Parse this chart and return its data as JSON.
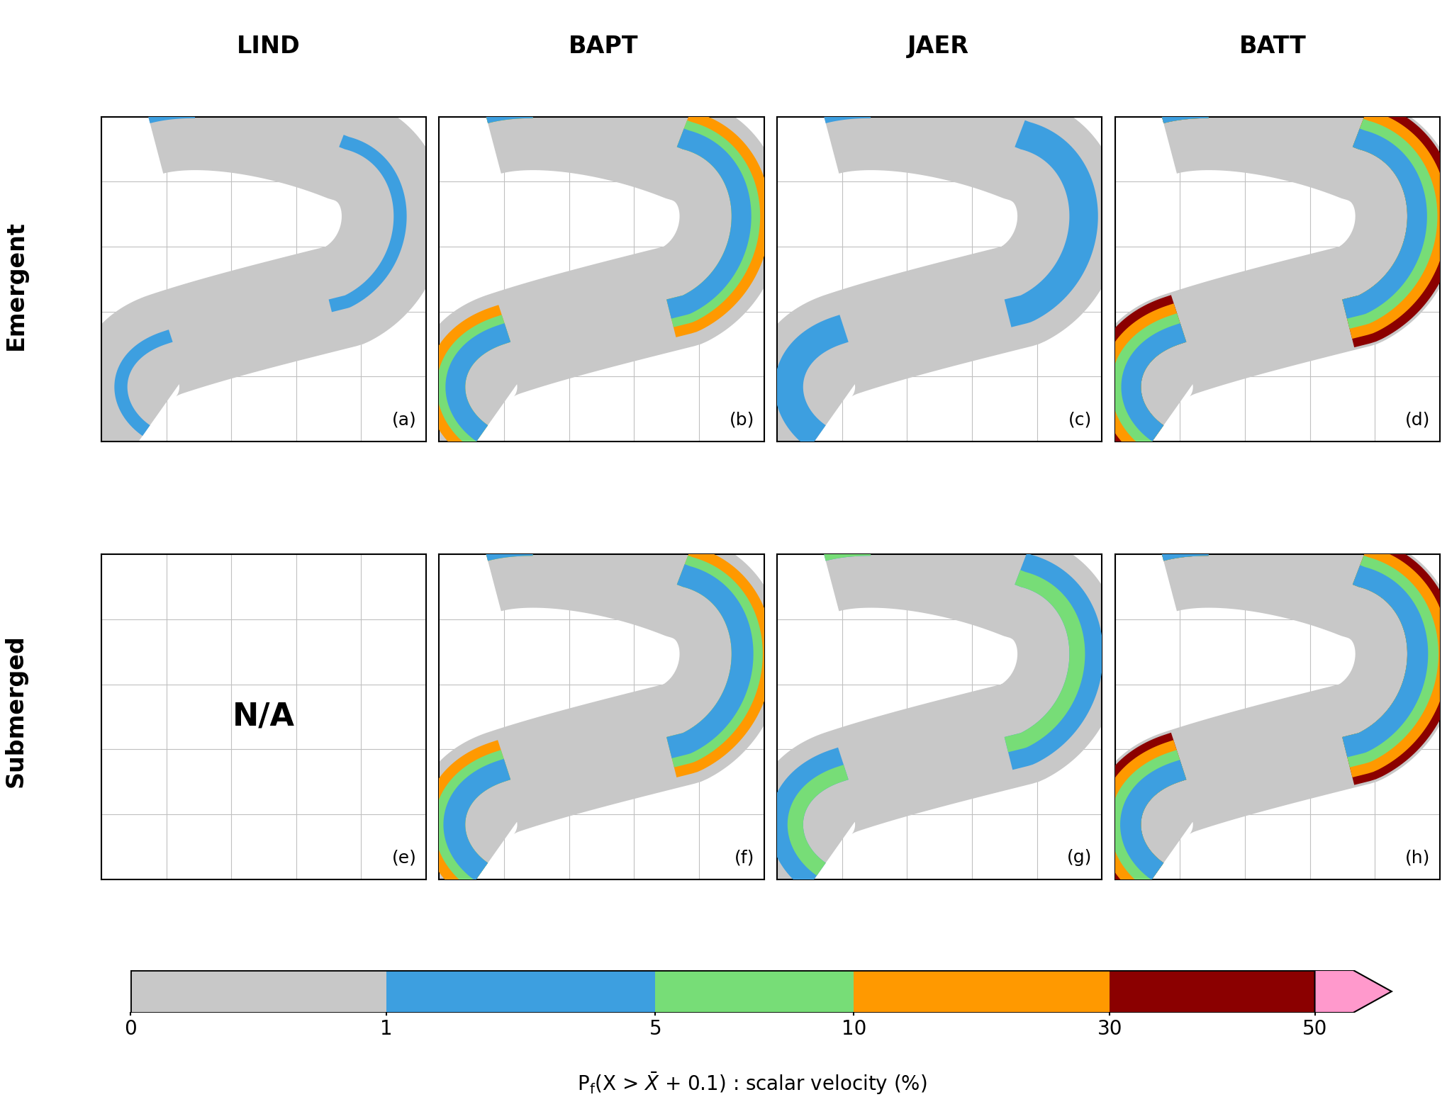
{
  "col_labels": [
    "LIND",
    "BAPT",
    "JAER",
    "BATT"
  ],
  "row_labels": [
    "Emergent",
    "Submerged"
  ],
  "panel_labels": [
    [
      "(a)",
      "(b)",
      "(c)",
      "(d)"
    ],
    [
      "(e)",
      "(f)",
      "(g)",
      "(h)"
    ]
  ],
  "colorbar_colors": [
    "#c8c8c8",
    "#3d9fe0",
    "#77dd77",
    "#ff9900",
    "#8b0000",
    "#ff99cc"
  ],
  "colorbar_ticks": [
    0,
    1,
    5,
    10,
    30,
    50
  ],
  "colorbar_label": "P$_\\mathrm{f}$(X > $\\bar{X}$ + 0.1) : scalar velocity (%)",
  "background_color": "#ffffff",
  "grid_color": "#c0c0c0",
  "title_fontsize": 24,
  "label_fontsize": 20,
  "tick_fontsize": 20,
  "panel_fontsize": 18
}
